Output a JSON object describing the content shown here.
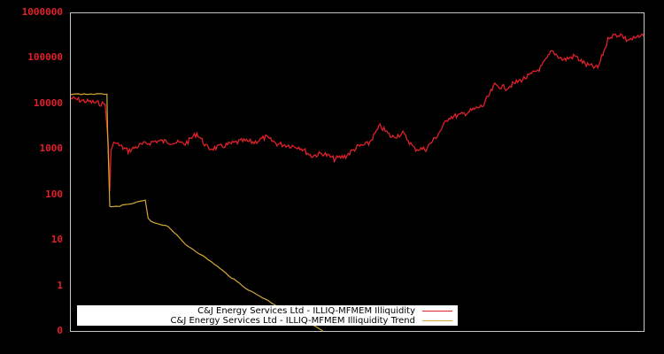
{
  "chart_data": {
    "type": "line",
    "title": "",
    "xlabel": "",
    "ylabel": "",
    "yscale": "log",
    "ylim": [
      0.1,
      1000000
    ],
    "yticks": [
      "1000000",
      "100000",
      "10000",
      "1000",
      "100",
      "10",
      "1",
      "0"
    ],
    "grid": false,
    "legend_position": "bottom-left inside",
    "colors": {
      "background": "#000000",
      "axes": "#c8c8c8",
      "tick_labels": "#e0202a",
      "series1": "#e0202a",
      "series2": "#d4a838"
    },
    "series": [
      {
        "name": "C&J Energy Services Ltd - ILLIQ-MFMEM Illiquidity",
        "color": "#e0202a",
        "x_frac": [
          0.0,
          0.02,
          0.05,
          0.06,
          0.065,
          0.068,
          0.07,
          0.075,
          0.08,
          0.1,
          0.12,
          0.15,
          0.18,
          0.2,
          0.22,
          0.24,
          0.26,
          0.28,
          0.3,
          0.32,
          0.34,
          0.36,
          0.38,
          0.4,
          0.42,
          0.44,
          0.46,
          0.48,
          0.5,
          0.52,
          0.54,
          0.56,
          0.58,
          0.6,
          0.62,
          0.64,
          0.66,
          0.68,
          0.7,
          0.72,
          0.74,
          0.76,
          0.78,
          0.8,
          0.82,
          0.84,
          0.86,
          0.88,
          0.9,
          0.92,
          0.94,
          0.96,
          0.97,
          0.98,
          0.99,
          1.0
        ],
        "values": [
          13000,
          11500,
          10000,
          9500,
          1500,
          120,
          900,
          1400,
          1300,
          900,
          1200,
          1500,
          1400,
          1300,
          2200,
          1000,
          1100,
          1300,
          1500,
          1400,
          1800,
          1300,
          1200,
          1100,
          700,
          800,
          600,
          700,
          1100,
          1300,
          3200,
          1800,
          2200,
          1000,
          1000,
          2000,
          5000,
          5500,
          7000,
          9000,
          25000,
          22000,
          30000,
          40000,
          60000,
          140000,
          90000,
          110000,
          70000,
          60000,
          300000,
          330000,
          250000,
          260000,
          280000,
          300000
        ]
      },
      {
        "name": "C&J Energy Services Ltd - ILLIQ-MFMEM Illiquidity Trend",
        "color": "#d4a838",
        "x_frac": [
          0.0,
          0.063,
          0.064,
          0.068,
          0.07,
          0.1,
          0.13,
          0.135,
          0.14,
          0.17,
          0.2,
          0.22,
          0.25,
          0.28,
          0.31,
          0.34,
          0.37,
          0.4,
          0.43,
          0.44
        ],
        "values": [
          16000,
          16000,
          3000,
          55,
          52,
          60,
          75,
          30,
          25,
          20,
          8,
          5.5,
          3,
          1.5,
          0.8,
          0.5,
          0.3,
          0.18,
          0.12,
          0.1
        ]
      }
    ]
  },
  "legend": {
    "items": [
      {
        "label": "C&J Energy Services Ltd - ILLIQ-MFMEM Illiquidity",
        "color": "#e0202a"
      },
      {
        "label": "C&J Energy Services Ltd - ILLIQ-MFMEM Illiquidity Trend",
        "color": "#d4a838"
      }
    ]
  }
}
